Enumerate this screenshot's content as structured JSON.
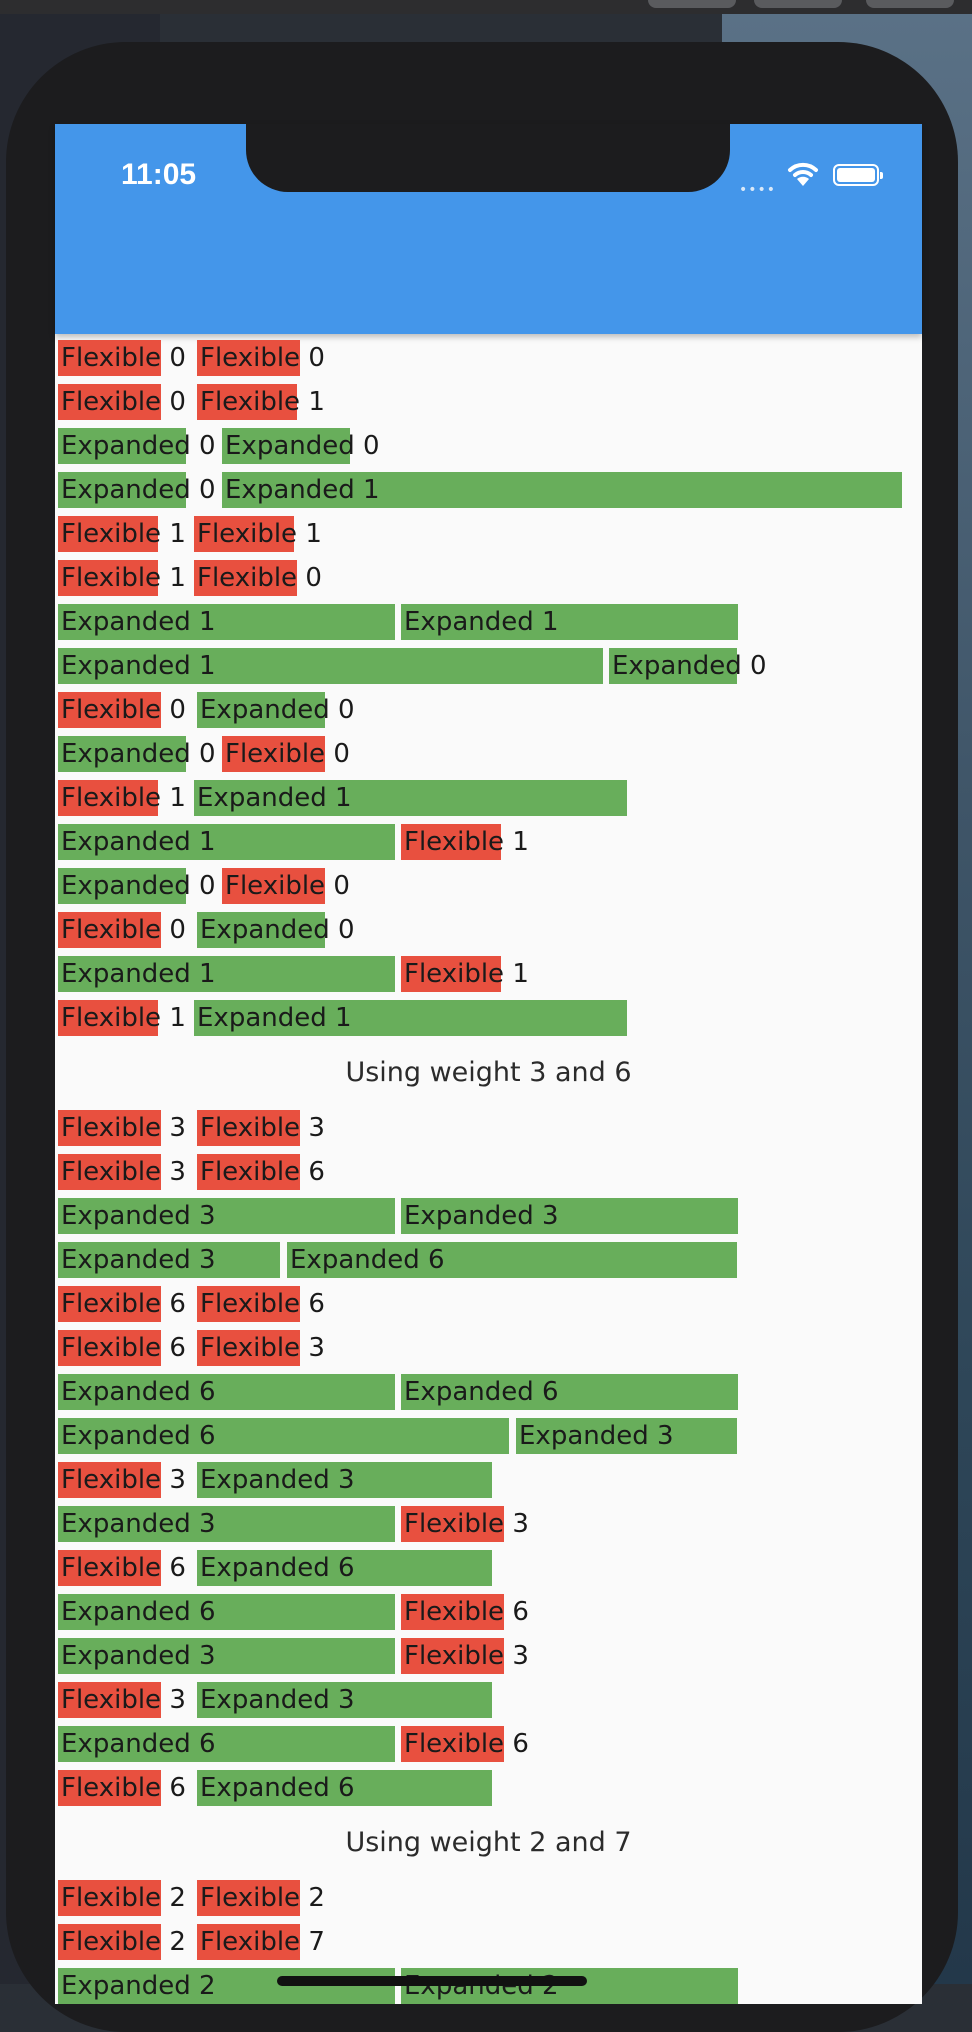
{
  "status_bar": {
    "time": "11:05"
  },
  "colors": {
    "flexible": "#e8503f",
    "expanded": "#68ae5b",
    "app_bar": "#4496ea"
  },
  "section1_rows": [
    [
      "Flexible 0",
      "Flexible 0"
    ],
    [
      "Flexible 0",
      "Flexible 1"
    ],
    [
      "Expanded 0",
      "Expanded 0"
    ],
    [
      "Expanded 0",
      "Expanded 1"
    ],
    [
      "Flexible 1",
      "Flexible 1"
    ],
    [
      "Flexible 1",
      "Flexible 0"
    ],
    [
      "Expanded 1",
      "Expanded 1"
    ],
    [
      "Expanded 1",
      "Expanded 0"
    ],
    [
      "Flexible 0",
      "Expanded 0"
    ],
    [
      "Expanded 0",
      "Flexible 0"
    ],
    [
      "Flexible 1",
      "Expanded 1"
    ],
    [
      "Expanded 1",
      "Flexible 1"
    ],
    [
      "Expanded 0",
      "Flexible 0"
    ],
    [
      "Flexible 0",
      "Expanded 0"
    ],
    [
      "Expanded 1",
      "Flexible 1"
    ],
    [
      "Flexible 1",
      "Expanded 1"
    ]
  ],
  "heading_weight_3_6": "Using weight 3 and 6",
  "section2_rows": [
    [
      "Flexible 3",
      "Flexible 3"
    ],
    [
      "Flexible 3",
      "Flexible 6"
    ],
    [
      "Expanded 3",
      "Expanded 3"
    ],
    [
      "Expanded 3",
      "Expanded 6"
    ],
    [
      "Flexible 6",
      "Flexible 6"
    ],
    [
      "Flexible 6",
      "Flexible 3"
    ],
    [
      "Expanded 6",
      "Expanded 6"
    ],
    [
      "Expanded 6",
      "Expanded 3"
    ],
    [
      "Flexible 3",
      "Expanded 3"
    ],
    [
      "Expanded 3",
      "Flexible 3"
    ],
    [
      "Flexible 6",
      "Expanded 6"
    ],
    [
      "Expanded 6",
      "Flexible 6"
    ],
    [
      "Expanded 3",
      "Flexible 3"
    ],
    [
      "Flexible 3",
      "Expanded 3"
    ],
    [
      "Expanded 6",
      "Flexible 6"
    ],
    [
      "Flexible 6",
      "Expanded 6"
    ]
  ],
  "heading_weight_2_7": "Using weight 2 and 7",
  "section3_rows": [
    [
      "Flexible 2",
      "Flexible 2"
    ],
    [
      "Flexible 2",
      "Flexible 7"
    ],
    [
      "Expanded 2",
      "Expanded 2"
    ]
  ]
}
